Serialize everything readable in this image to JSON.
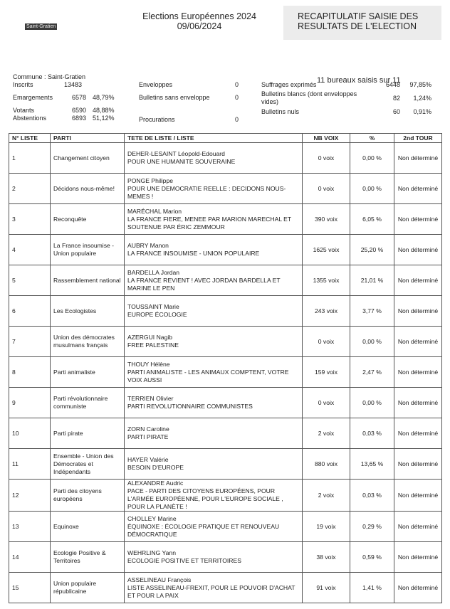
{
  "header": {
    "logo_text": "Saint-Gratien",
    "election": "Elections Européennes 2024",
    "date": "09/06/2024",
    "recap_line1": "RECAPITULATIF SAISIE DES",
    "recap_line2": "RESULTATS DE L'ELECTION"
  },
  "commune": "Commune : Saint-Gratien",
  "bureaux": "11 bureaux saisis sur 11",
  "stats": {
    "inscrits": {
      "label": "Inscrits",
      "value": "13483"
    },
    "emargements": {
      "label": "Emargements",
      "value": "6578",
      "pct": "48,79%"
    },
    "votants": {
      "label": "Votants",
      "value": "6590",
      "pct": "48,88%"
    },
    "abstentions": {
      "label": "Abstentions",
      "value": "6893",
      "pct": "51,12%"
    },
    "enveloppes": {
      "label": "Enveloppes",
      "value": "0"
    },
    "sans_enveloppe": {
      "label": "Bulletins sans enveloppe",
      "value": "0"
    },
    "procurations": {
      "label": "Procurations",
      "value": "0"
    },
    "exprimes": {
      "label": "Suffrages exprimés",
      "value": "6448",
      "pct": "97,85%"
    },
    "blancs": {
      "label": "Bulletins blancs (dont enveloppes vides)",
      "value": "82",
      "pct": "1,24%"
    },
    "nuls": {
      "label": "Bulletins nuls",
      "value": "60",
      "pct": "0,91%"
    }
  },
  "table": {
    "headers": [
      "N° LISTE",
      "PARTI",
      "TETE DE LISTE / LISTE",
      "NB VOIX",
      "%",
      "2nd TOUR"
    ],
    "rows": [
      {
        "n": "1",
        "parti": "Changement citoyen",
        "tete": "DEHER-LESAINT Léopold-Edouard",
        "liste": "POUR UNE HUMANITE SOUVERAINE",
        "voix": "0 voix",
        "pct": "0,00 %",
        "tour": "Non déterminé"
      },
      {
        "n": "2",
        "parti": "Décidons nous-même!",
        "tete": "PONGE Philippe",
        "liste": "POUR UNE DEMOCRATIE REELLE : DECIDONS NOUS-MEMES !",
        "voix": "0 voix",
        "pct": "0,00 %",
        "tour": "Non déterminé"
      },
      {
        "n": "3",
        "parti": "Reconquête",
        "tete": "MARÉCHAL Marion",
        "liste": "LA FRANCE FIERE, MENEE PAR MARION MARECHAL ET SOUTENUE PAR ÉRIC ZEMMOUR",
        "voix": "390 voix",
        "pct": "6,05 %",
        "tour": "Non déterminé"
      },
      {
        "n": "4",
        "parti": "La France insoumise - Union populaire",
        "tete": "AUBRY Manon",
        "liste": "LA FRANCE INSOUMISE - UNION POPULAIRE",
        "voix": "1625 voix",
        "pct": "25,20 %",
        "tour": "Non déterminé"
      },
      {
        "n": "5",
        "parti": "Rassemblement national",
        "tete": "BARDELLA Jordan",
        "liste": "LA FRANCE REVIENT ! AVEC JORDAN BARDELLA ET MARINE LE PEN",
        "voix": "1355 voix",
        "pct": "21,01 %",
        "tour": "Non déterminé"
      },
      {
        "n": "6",
        "parti": "Les Ecologistes",
        "tete": "TOUSSAINT Marie",
        "liste": "EUROPE ÉCOLOGIE",
        "voix": "243 voix",
        "pct": "3,77 %",
        "tour": "Non déterminé"
      },
      {
        "n": "7",
        "parti": "Union des démocrates musulmans français",
        "tete": "AZERGUI Nagib",
        "liste": "FREE PALESTINE",
        "voix": "0 voix",
        "pct": "0,00 %",
        "tour": "Non déterminé"
      },
      {
        "n": "8",
        "parti": "Parti animaliste",
        "tete": "THOUY Hélène",
        "liste": "PARTI ANIMALISTE - LES ANIMAUX COMPTENT, VOTRE VOIX AUSSI",
        "voix": "159 voix",
        "pct": "2,47 %",
        "tour": "Non déterminé"
      },
      {
        "n": "9",
        "parti": "Parti révolutionnaire communiste",
        "tete": "TERRIEN Olivier",
        "liste": "PARTI REVOLUTIONNAIRE COMMUNISTES",
        "voix": "0 voix",
        "pct": "0,00 %",
        "tour": "Non déterminé"
      },
      {
        "n": "10",
        "parti": "Parti pirate",
        "tete": "ZORN Caroline",
        "liste": "PARTI PIRATE",
        "voix": "2 voix",
        "pct": "0,03 %",
        "tour": "Non déterminé"
      },
      {
        "n": "11",
        "parti": "Ensemble - Union des Démocrates et Indépendants",
        "tete": "HAYER Valérie",
        "liste": "BESOIN D'EUROPE",
        "voix": "880 voix",
        "pct": "13,65 %",
        "tour": "Non déterminé"
      },
      {
        "n": "12",
        "parti": "Parti des citoyens européens",
        "tete": "ALEXANDRE Audric",
        "liste": "PACE - PARTI DES CITOYENS EUROPÉENS, POUR L'ARMÉE EUROPÉENNE, POUR L'EUROPE SOCIALE , POUR LA PLANÈTE !",
        "voix": "2 voix",
        "pct": "0,03 %",
        "tour": "Non déterminé"
      },
      {
        "n": "13",
        "parti": "Equinoxe",
        "tete": "CHOLLEY Marine",
        "liste": "ÉQUINOXE : ÉCOLOGIE PRATIQUE ET RENOUVEAU DÉMOCRATIQUE",
        "voix": "19 voix",
        "pct": "0,29 %",
        "tour": "Non déterminé"
      },
      {
        "n": "14",
        "parti": "Ecologie Positive & Territoires",
        "tete": "WEHRLING Yann",
        "liste": "ECOLOGIE POSITIVE ET TERRITOIRES",
        "voix": "38 voix",
        "pct": "0,59 %",
        "tour": "Non déterminé"
      },
      {
        "n": "15",
        "parti": "Union populaire républicaine",
        "tete": "ASSELINEAU François",
        "liste": "LISTE ASSELINEAU-FREXIT, POUR LE POUVOIR D'ACHAT ET POUR LA PAIX",
        "voix": "91 voix",
        "pct": "1,41 %",
        "tour": "Non déterminé"
      }
    ]
  }
}
